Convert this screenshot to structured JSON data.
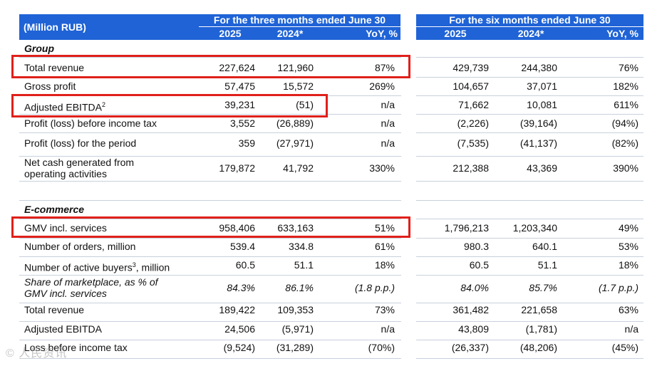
{
  "header": {
    "unit_label": "(Million RUB)",
    "group1_title": "For the three months ended June 30",
    "group2_title": "For the six months ended June 30",
    "columns": [
      "2025",
      "2024*",
      "YoY, %",
      "2025",
      "2024*",
      "YoY, %"
    ]
  },
  "sections": {
    "group": "Group",
    "ecommerce": "E-commerce"
  },
  "rows": [
    {
      "label": "Total revenue",
      "values": [
        "227,624",
        "121,960",
        "87%",
        "429,739",
        "244,380",
        "76%"
      ]
    },
    {
      "label": "Gross profit",
      "values": [
        "57,475",
        "15,572",
        "269%",
        "104,657",
        "37,071",
        "182%"
      ]
    },
    {
      "label": "Adjusted EBITDA",
      "sup": "2",
      "values": [
        "39,231",
        "(51)",
        "n/a",
        "71,662",
        "10,081",
        "611%"
      ]
    },
    {
      "label": "Profit (loss) before income tax",
      "values": [
        "3,552",
        "(26,889)",
        "n/a",
        "(2,226)",
        "(39,164)",
        "(94%)"
      ]
    },
    {
      "label": "Profit (loss) for the period",
      "values": [
        "359",
        "(27,971)",
        "n/a",
        "(7,535)",
        "(41,137)",
        "(82%)"
      ]
    },
    {
      "label": "Net cash generated from",
      "label2": "operating activities",
      "values": [
        "179,872",
        "41,792",
        "330%",
        "212,388",
        "43,369",
        "390%"
      ]
    },
    {
      "label": "GMV incl. services",
      "values": [
        "958,406",
        "633,163",
        "51%",
        "1,796,213",
        "1,203,340",
        "49%"
      ]
    },
    {
      "label": "Number of orders, million",
      "values": [
        "539.4",
        "334.8",
        "61%",
        "980.3",
        "640.1",
        "53%"
      ]
    },
    {
      "label": "Number of active buyers",
      "sup": "3",
      "label_suffix": ", million",
      "values": [
        "60.5",
        "51.1",
        "18%",
        "60.5",
        "51.1",
        "18%"
      ]
    },
    {
      "label": "Share of marketplace, as % of",
      "label2": "GMV incl. services",
      "values": [
        "84.3%",
        "86.1%",
        "(1.8 p.p.)",
        "84.0%",
        "85.7%",
        "(1.7 p.p.)"
      ]
    },
    {
      "label": "Total revenue",
      "values": [
        "189,422",
        "109,353",
        "73%",
        "361,482",
        "221,658",
        "63%"
      ]
    },
    {
      "label": "Adjusted EBITDA",
      "values": [
        "24,506",
        "(5,971)",
        "n/a",
        "43,809",
        "(1,781)",
        "n/a"
      ]
    },
    {
      "label": "Loss before income tax",
      "values": [
        "(9,524)",
        "(31,289)",
        "(70%)",
        "(26,337)",
        "(48,206)",
        "(45%)"
      ]
    }
  ],
  "watermark": "© 人民资讯",
  "colors": {
    "header_bg": "#1f63d6",
    "highlight": "#e0201b",
    "separator": "#c8d0dc"
  }
}
